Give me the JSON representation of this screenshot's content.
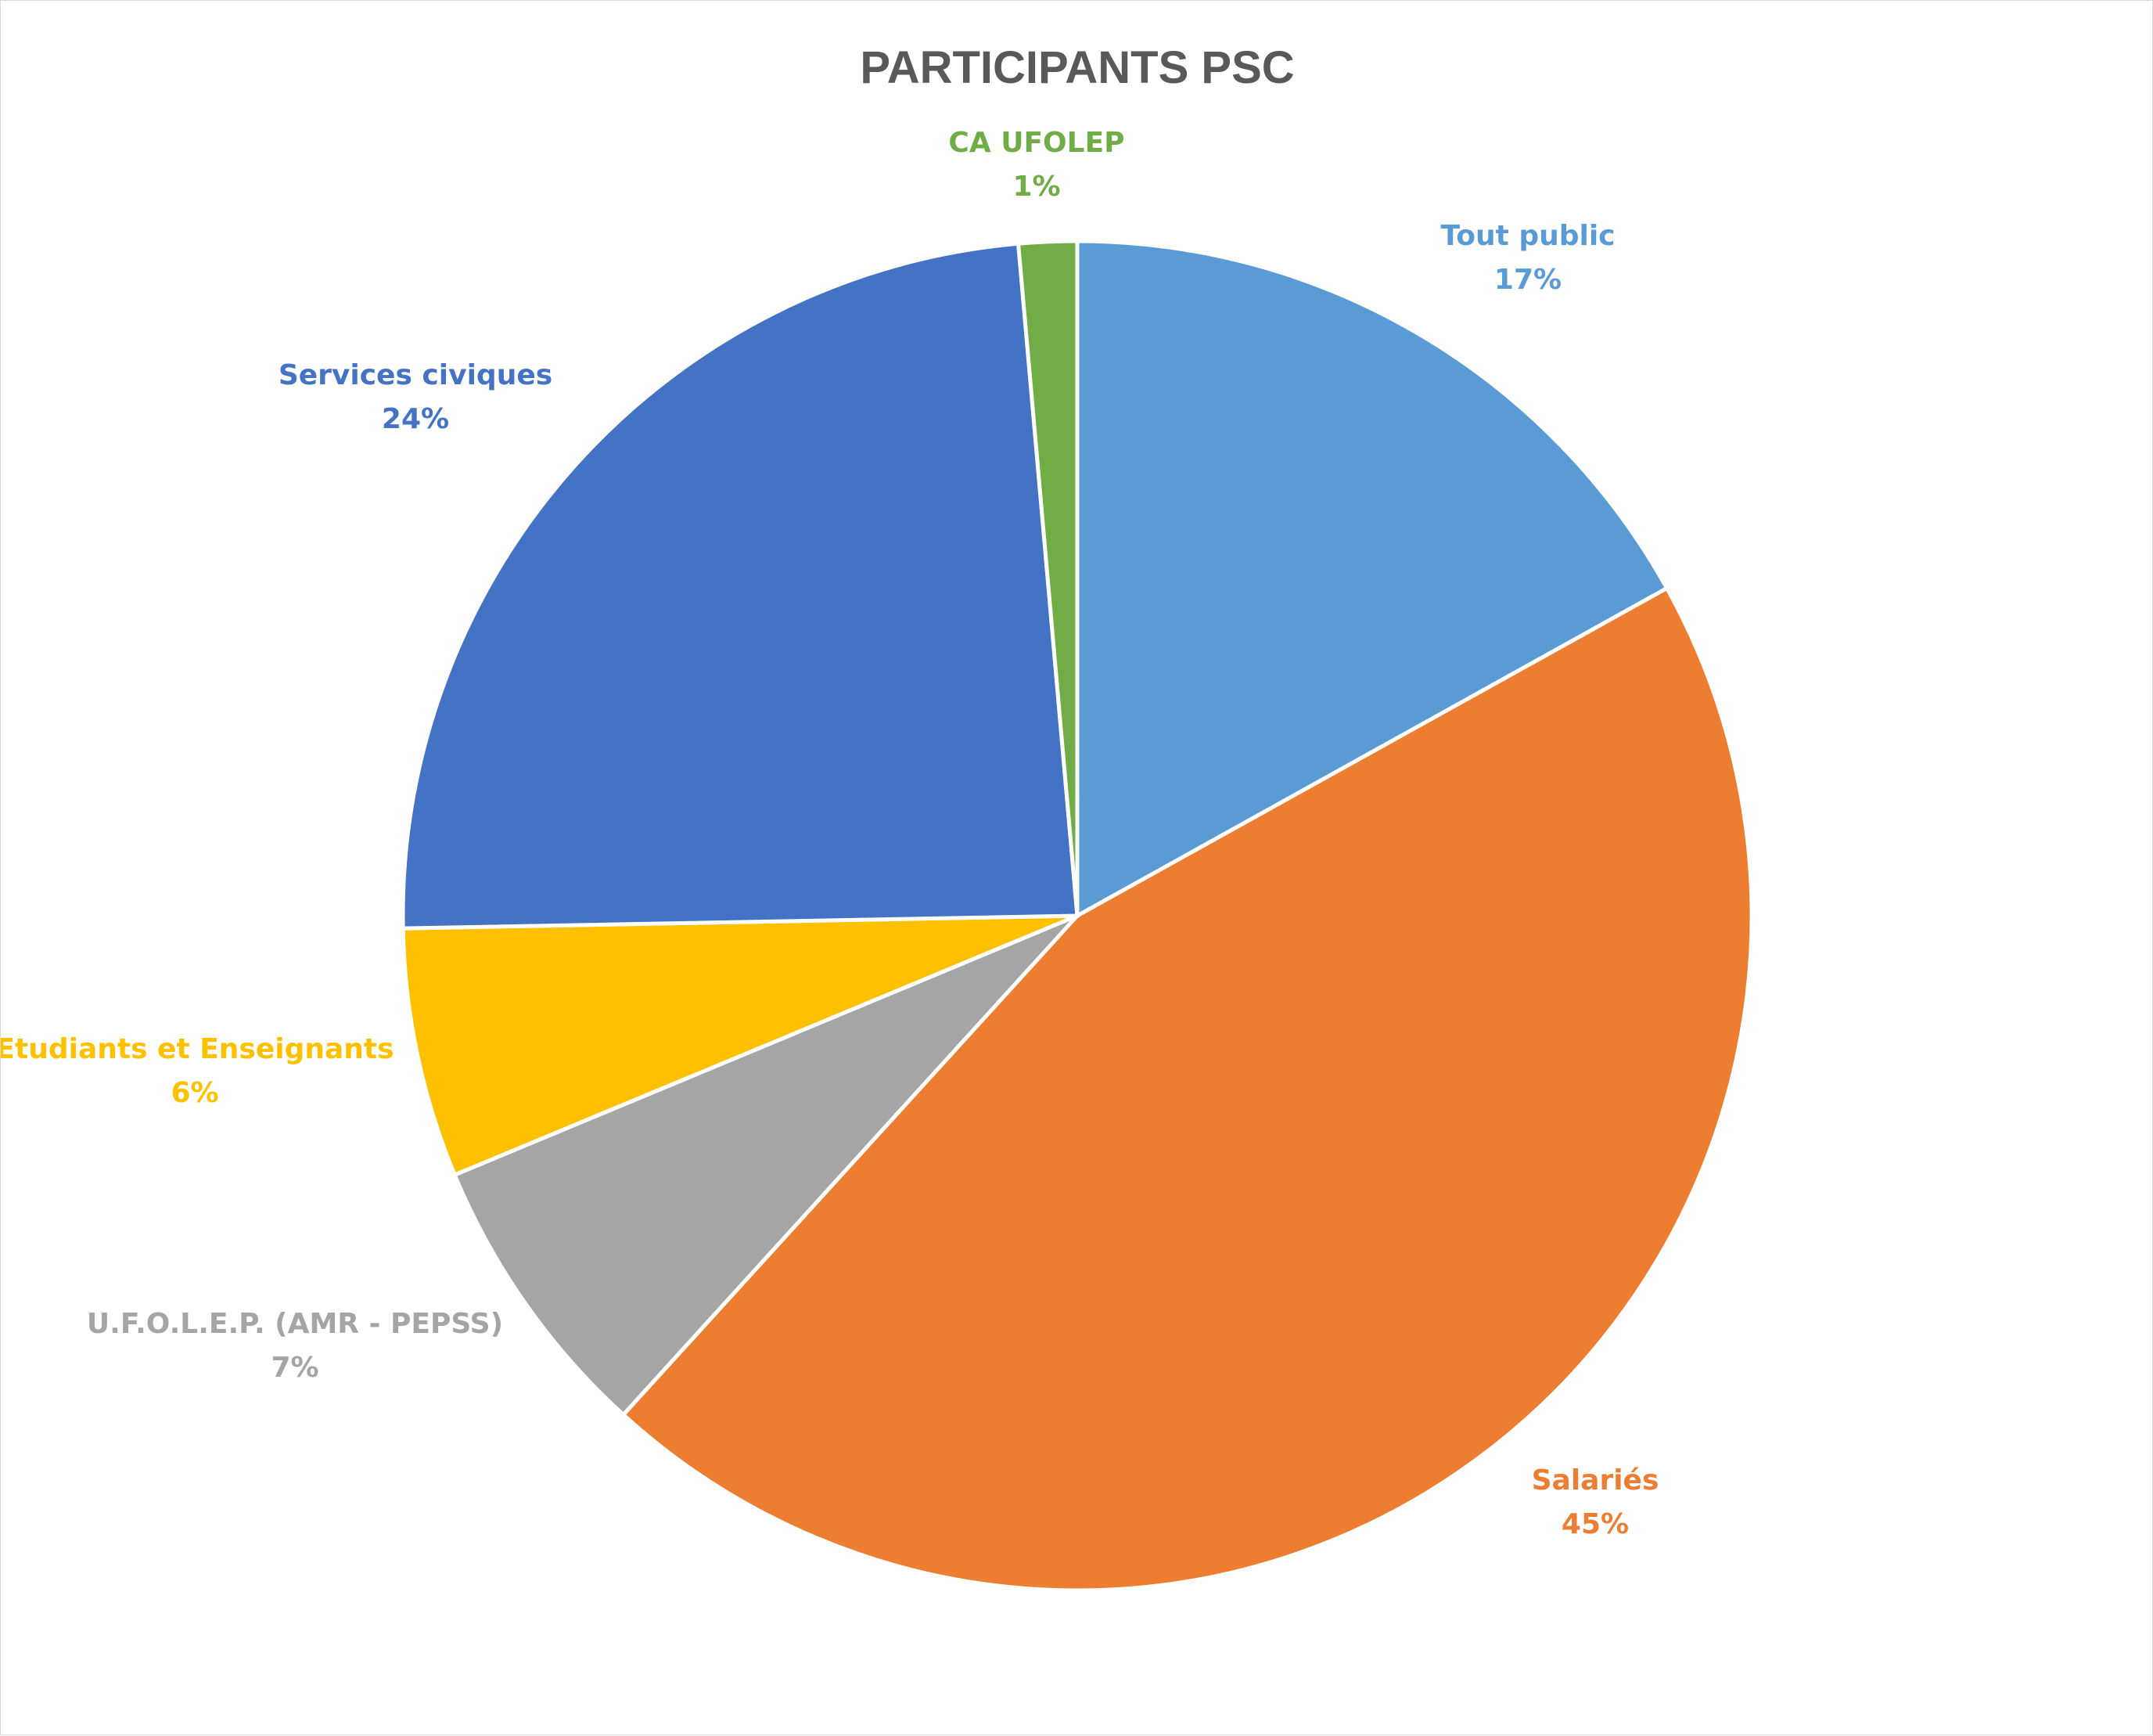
{
  "chart_data": {
    "type": "pie",
    "title": "PARTICIPANTS PSC",
    "slices": [
      {
        "label": "Tout public",
        "value": 17,
        "value_label": "17%",
        "color": "#5B9BD5"
      },
      {
        "label": "Salariés",
        "value": 45,
        "value_label": "45%",
        "color": "#ED7D31"
      },
      {
        "label": "U.F.O.L.E.P. (AMR - PEPSS)",
        "value": 7,
        "value_label": "7%",
        "color": "#A5A5A5"
      },
      {
        "label": "Etudiants et Enseignants",
        "value": 6,
        "value_label": "6%",
        "color": "#FFC000"
      },
      {
        "label": "Services civiques",
        "value": 24,
        "value_label": "24%",
        "color": "#4472C4"
      },
      {
        "label": "CA UFOLEP",
        "value": 1.4,
        "value_label": "1%",
        "color": "#70AD47"
      }
    ]
  }
}
